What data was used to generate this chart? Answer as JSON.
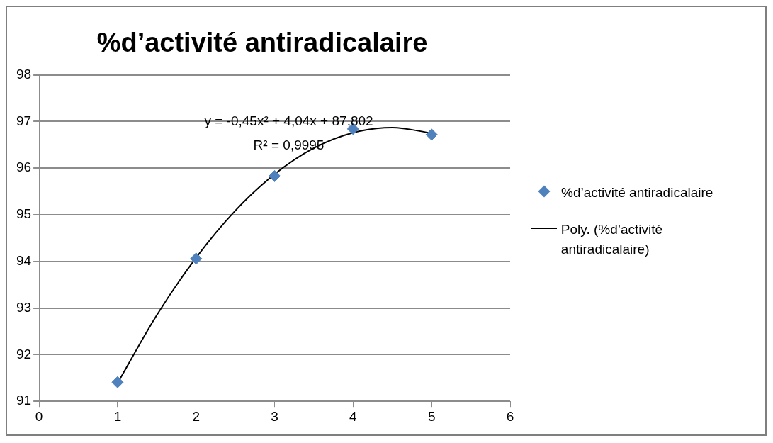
{
  "chart_data": {
    "type": "scatter",
    "title": "%d’activité antiradicalaire",
    "xlim": [
      0,
      6
    ],
    "xticks": [
      0,
      1,
      2,
      3,
      4,
      5,
      6
    ],
    "ylim": [
      91,
      98
    ],
    "yticks": [
      91,
      92,
      93,
      94,
      95,
      96,
      97,
      98
    ],
    "grid": "y",
    "legend": "right",
    "marker": "diamond",
    "annotations": [
      "y = -0,45x² + 4,04x + 87,802",
      "R² = 0,9995"
    ],
    "series": [
      {
        "name": "%d’activité antiradicalaire",
        "type": "scatter",
        "color": "#4f81bd",
        "x": [
          1,
          2,
          3,
          4,
          5
        ],
        "values": [
          91.41,
          94.06,
          95.83,
          96.84,
          96.72
        ]
      },
      {
        "name": "Poly. (%d’activité antiradicalaire)",
        "type": "line",
        "color": "#000000",
        "marker": "none",
        "x": [
          1,
          1.5,
          2,
          2.5,
          3,
          3.5,
          4,
          4.5,
          5
        ],
        "values": [
          91.39,
          92.85,
          94.08,
          95.09,
          95.87,
          96.43,
          96.76,
          96.87,
          96.75
        ]
      }
    ]
  }
}
